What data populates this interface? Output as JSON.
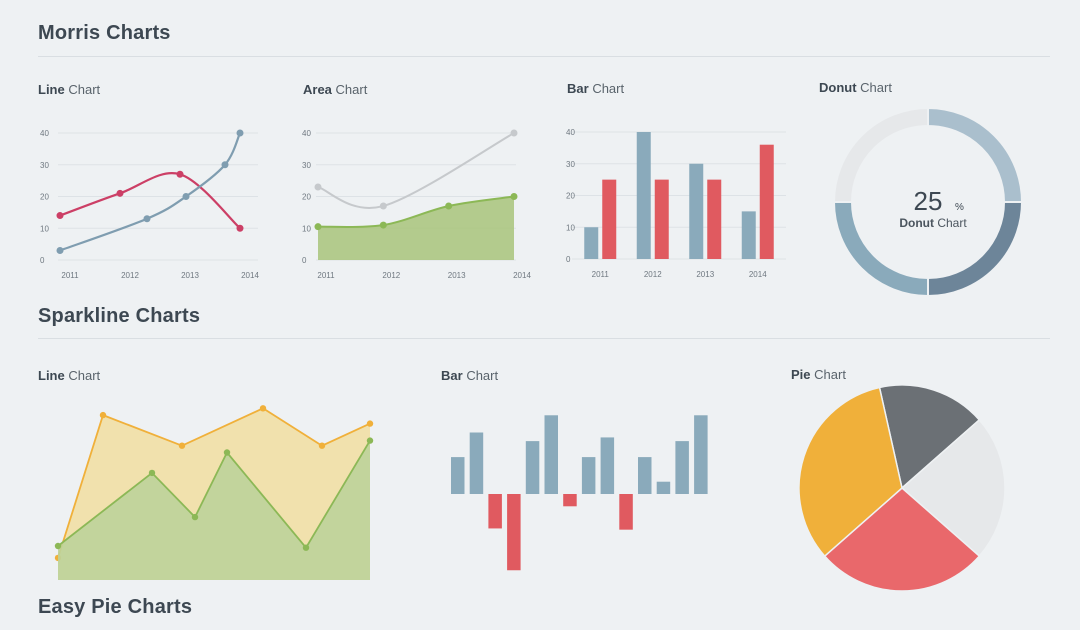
{
  "sections": {
    "morris": "Morris Charts",
    "sparkline": "Sparkline Charts",
    "easy_pie": "Easy Pie Charts"
  },
  "colors": {
    "blue": "#8aaabb",
    "red": "#e05a60",
    "crimson": "#cc3f66",
    "green": "#a8c47a",
    "green_line": "#8cb856",
    "gray_line": "#c6c9cc",
    "orange": "#f0b03a",
    "dark_gray": "#6b7075",
    "light_gray": "#e6e8ea"
  },
  "chart_data": [
    {
      "id": "morris-line",
      "type": "line",
      "title_bold": "Line",
      "title_rest": "Chart",
      "x": [
        "2011",
        "2012",
        "2013",
        "2014"
      ],
      "ylim": [
        0,
        40
      ],
      "yticks": [
        0,
        10,
        20,
        30,
        40
      ],
      "series": [
        {
          "color": "#cc3f66",
          "points": [
            [
              2011,
              14
            ],
            [
              2012,
              21
            ],
            [
              2013,
              27
            ],
            [
              2014,
              10
            ]
          ]
        },
        {
          "color": "#7f9db0",
          "points": [
            [
              2011,
              3
            ],
            [
              2012.45,
              13
            ],
            [
              2013.1,
              20
            ],
            [
              2013.75,
              30
            ],
            [
              2014,
              40
            ]
          ]
        }
      ]
    },
    {
      "id": "morris-area",
      "type": "area",
      "title_bold": "Area",
      "title_rest": "Chart",
      "x": [
        "2011",
        "2012",
        "2013",
        "2014"
      ],
      "ylim": [
        0,
        40
      ],
      "yticks": [
        0,
        10,
        20,
        30,
        40
      ],
      "series": [
        {
          "color": "#c6c9cc",
          "fill": false,
          "points": [
            [
              2011,
              23
            ],
            [
              2012,
              17
            ],
            [
              2014,
              40
            ]
          ]
        },
        {
          "color": "#8cb856",
          "fill": true,
          "points": [
            [
              2011,
              10.5
            ],
            [
              2012,
              11
            ],
            [
              2013,
              17
            ],
            [
              2014,
              20
            ]
          ]
        }
      ]
    },
    {
      "id": "morris-bar",
      "type": "bar",
      "title_bold": "Bar",
      "title_rest": "Chart",
      "categories": [
        "2011",
        "2012",
        "2013",
        "2014"
      ],
      "ylim": [
        0,
        40
      ],
      "yticks": [
        0,
        10,
        20,
        30,
        40
      ],
      "series": [
        {
          "color": "#8aaabb",
          "values": [
            10,
            40,
            30,
            15
          ]
        },
        {
          "color": "#e05a60",
          "values": [
            25,
            25,
            25,
            36
          ]
        }
      ]
    },
    {
      "id": "morris-donut",
      "type": "pie",
      "title_bold": "Donut",
      "title_rest": "Chart",
      "center_value": "25",
      "center_unit": "%",
      "center_label_bold": "Donut",
      "center_label_rest": "Chart",
      "slices": [
        {
          "value": 25,
          "color": "#aabfcd"
        },
        {
          "value": 25,
          "color": "#6d8599"
        },
        {
          "value": 25,
          "color": "#8aaabb"
        },
        {
          "value": 25,
          "color": "#e6e8ea"
        }
      ]
    },
    {
      "id": "spark-line",
      "type": "area",
      "title_bold": "Line",
      "title_rest": "Chart",
      "ylim": [
        0,
        10
      ],
      "series": [
        {
          "color": "#f0b03a",
          "fill": "#f1dfa5",
          "values": [
            1.3,
            9.7,
            7.9,
            10.1,
            7.9,
            9.2
          ]
        },
        {
          "color": "#8cb856",
          "fill": "#bcd39a",
          "values": [
            2,
            6.3,
            3.7,
            7.5,
            1.9,
            8.2
          ]
        }
      ]
    },
    {
      "id": "spark-bar",
      "type": "bar",
      "title_bold": "Bar",
      "title_rest": "Chart",
      "values": [
        3,
        5,
        -2.8,
        -6.2,
        4.3,
        6.4,
        -1,
        3,
        4.6,
        -2.9,
        3,
        1,
        4.3,
        6.4
      ],
      "colors": {
        "positive": "#8aaabb",
        "negative": "#e05a60"
      }
    },
    {
      "id": "spark-pie",
      "type": "pie",
      "title_bold": "Pie",
      "title_rest": "Chart",
      "slices": [
        {
          "value": 17,
          "color": "#6b7075"
        },
        {
          "value": 23,
          "color": "#e6e8ea"
        },
        {
          "value": 27,
          "color": "#e9686b"
        },
        {
          "value": 33,
          "color": "#f0b03a"
        }
      ]
    }
  ]
}
